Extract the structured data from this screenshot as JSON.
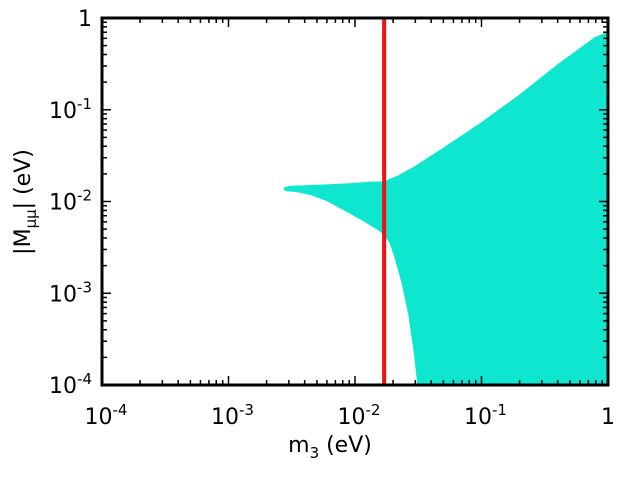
{
  "chart_data": {
    "type": "scatter",
    "title": "",
    "xlabel": {
      "base": "m",
      "sub": "3",
      "tail": " (eV)"
    },
    "ylabel": {
      "pre": "|M",
      "sub": "μμ",
      "tail": "| (eV)"
    },
    "xscale": "log",
    "yscale": "log",
    "xlim": [
      0.0001,
      1
    ],
    "ylim": [
      0.0001,
      1
    ],
    "grid": false,
    "legend": "none",
    "x_ticks": [
      {
        "value": 0.0001,
        "base": "10",
        "exp": "-4"
      },
      {
        "value": 0.001,
        "base": "10",
        "exp": "-3"
      },
      {
        "value": 0.01,
        "base": "10",
        "exp": "-2"
      },
      {
        "value": 0.1,
        "base": "10",
        "exp": "-1"
      },
      {
        "value": 1,
        "base": "1",
        "exp": ""
      }
    ],
    "y_ticks": [
      {
        "value": 0.0001,
        "base": "10",
        "exp": "-4"
      },
      {
        "value": 0.001,
        "base": "10",
        "exp": "-3"
      },
      {
        "value": 0.01,
        "base": "10",
        "exp": "-2"
      },
      {
        "value": 0.1,
        "base": "10",
        "exp": "-1"
      },
      {
        "value": 1,
        "base": "1",
        "exp": ""
      }
    ],
    "allowed_region": {
      "color": "#0fe6d0",
      "boundary": [
        [
          0.0028,
          0.0138
        ],
        [
          0.0031,
          0.0143
        ],
        [
          0.004,
          0.0145
        ],
        [
          0.006,
          0.0148
        ],
        [
          0.009,
          0.0152
        ],
        [
          0.013,
          0.0158
        ],
        [
          0.017,
          0.016
        ],
        [
          0.022,
          0.0185
        ],
        [
          0.03,
          0.0235
        ],
        [
          0.05,
          0.037
        ],
        [
          0.1,
          0.07
        ],
        [
          0.2,
          0.14
        ],
        [
          0.4,
          0.3
        ],
        [
          0.6,
          0.45
        ],
        [
          0.8,
          0.6
        ],
        [
          1.0,
          0.68
        ],
        [
          1.0,
          0.0001
        ],
        [
          0.032,
          0.0001
        ],
        [
          0.03,
          0.00022
        ],
        [
          0.027,
          0.0006
        ],
        [
          0.024,
          0.0013
        ],
        [
          0.021,
          0.0025
        ],
        [
          0.019,
          0.0037
        ],
        [
          0.017,
          0.0045
        ],
        [
          0.0155,
          0.005
        ],
        [
          0.012,
          0.0062
        ],
        [
          0.008,
          0.0085
        ],
        [
          0.006,
          0.0105
        ],
        [
          0.0045,
          0.0122
        ],
        [
          0.0035,
          0.0131
        ],
        [
          0.0029,
          0.0134
        ]
      ]
    },
    "vertical_line": {
      "x": 0.017,
      "color": "#ee1111"
    }
  }
}
